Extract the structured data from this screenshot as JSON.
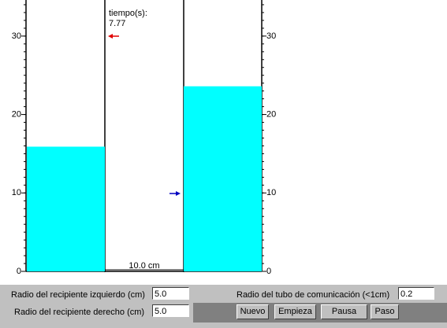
{
  "simulation": {
    "time_label": "tiempo(s):",
    "time": 7.77,
    "ylim": [
      0,
      34.6
    ],
    "yticks": [
      0,
      10,
      20,
      30
    ],
    "left_level": 15.9,
    "right_level": 23.6,
    "tube_label": "10.0 cm",
    "water_color": "#00ffff"
  },
  "controls": {
    "left_radius_label": "Radio del recipiente izquierdo (cm)",
    "left_radius": "5.0",
    "right_radius_label": "Radio del recipiente derecho (cm)",
    "right_radius": "5.0",
    "tube_radius_label": "Radio del tubo de comunicación (<1cm)",
    "tube_radius": "0.2",
    "buttons": [
      "Nuevo",
      "Empieza",
      "Pausa",
      "Paso"
    ]
  }
}
